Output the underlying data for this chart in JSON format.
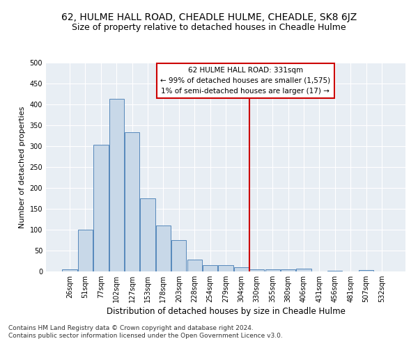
{
  "title": "62, HULME HALL ROAD, CHEADLE HULME, CHEADLE, SK8 6JZ",
  "subtitle": "Size of property relative to detached houses in Cheadle Hulme",
  "xlabel": "Distribution of detached houses by size in Cheadle Hulme",
  "ylabel": "Number of detached properties",
  "footnote1": "Contains HM Land Registry data © Crown copyright and database right 2024.",
  "footnote2": "Contains public sector information licensed under the Open Government Licence v3.0.",
  "bin_labels": [
    "26sqm",
    "51sqm",
    "77sqm",
    "102sqm",
    "127sqm",
    "153sqm",
    "178sqm",
    "203sqm",
    "228sqm",
    "254sqm",
    "279sqm",
    "304sqm",
    "330sqm",
    "355sqm",
    "380sqm",
    "406sqm",
    "431sqm",
    "456sqm",
    "481sqm",
    "507sqm",
    "532sqm"
  ],
  "bar_values": [
    5,
    100,
    303,
    413,
    333,
    175,
    110,
    75,
    28,
    15,
    15,
    10,
    5,
    5,
    5,
    6,
    0,
    2,
    0,
    3,
    0
  ],
  "bar_color": "#c8d8e8",
  "bar_edge_color": "#5588bb",
  "vline_x_index": 12,
  "vline_color": "#cc0000",
  "annotation_box_text": "62 HULME HALL ROAD: 331sqm\n← 99% of detached houses are smaller (1,575)\n1% of semi-detached houses are larger (17) →",
  "annotation_box_color": "#cc0000",
  "annotation_box_fill": "#ffffff",
  "ylim": [
    0,
    500
  ],
  "yticks": [
    0,
    50,
    100,
    150,
    200,
    250,
    300,
    350,
    400,
    450,
    500
  ],
  "bg_color": "#e8eef4",
  "title_fontsize": 10,
  "subtitle_fontsize": 9,
  "xlabel_fontsize": 8.5,
  "ylabel_fontsize": 8,
  "tick_fontsize": 7,
  "footnote_fontsize": 6.5
}
